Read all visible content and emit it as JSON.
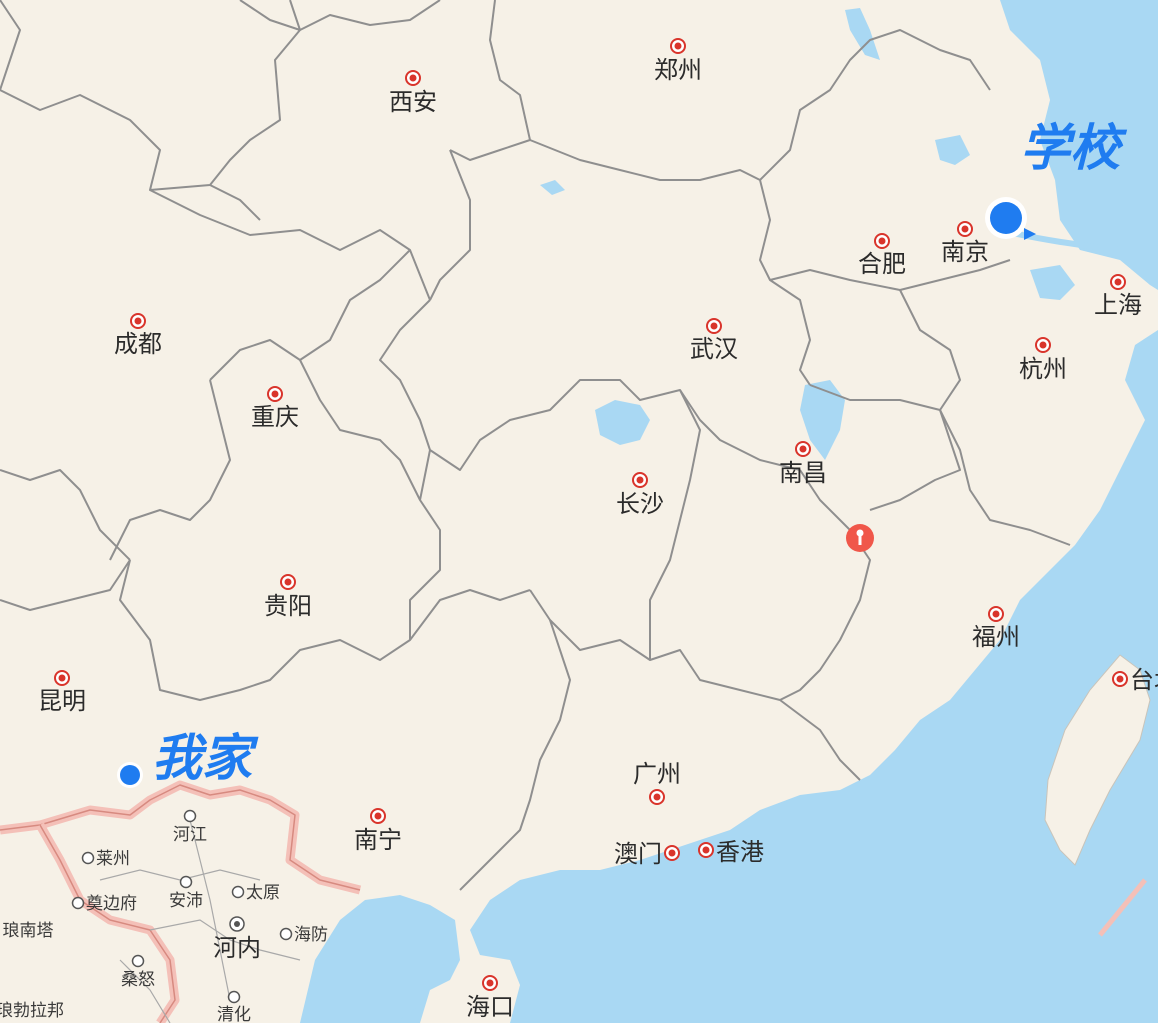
{
  "map": {
    "colors": {
      "land": "#f6f1e7",
      "water": "#a9d8f3",
      "border": "#8f8f8f",
      "national_border": "#f4c0b8",
      "city_dot": "#d9342b",
      "accent_blue": "#1f7cf0",
      "pin": "#f0574a"
    },
    "cities": [
      {
        "id": "xian",
        "name": "西安"
      },
      {
        "id": "zhengzhou",
        "name": "郑州"
      },
      {
        "id": "chengdu",
        "name": "成都"
      },
      {
        "id": "chongqing",
        "name": "重庆"
      },
      {
        "id": "wuhan",
        "name": "武汉"
      },
      {
        "id": "hefei",
        "name": "合肥"
      },
      {
        "id": "nanjing",
        "name": "南京"
      },
      {
        "id": "shanghai",
        "name": "上海"
      },
      {
        "id": "hangzhou",
        "name": "杭州"
      },
      {
        "id": "nanchang",
        "name": "南昌"
      },
      {
        "id": "changsha",
        "name": "长沙"
      },
      {
        "id": "guiyang",
        "name": "贵阳"
      },
      {
        "id": "kunming",
        "name": "昆明"
      },
      {
        "id": "fuzhou",
        "name": "福州"
      },
      {
        "id": "taibei",
        "name": "台北"
      },
      {
        "id": "nanning",
        "name": "南宁"
      },
      {
        "id": "guangzhou",
        "name": "广州"
      },
      {
        "id": "aomen",
        "name": "澳门"
      },
      {
        "id": "xianggang",
        "name": "香港"
      },
      {
        "id": "haikou",
        "name": "海口"
      }
    ],
    "vietnam_places": [
      {
        "id": "hejiang",
        "name": "河江"
      },
      {
        "id": "laizhou",
        "name": "莱州"
      },
      {
        "id": "taiyuan",
        "name": "太原"
      },
      {
        "id": "anpei",
        "name": "安沛"
      },
      {
        "id": "dianbianfu",
        "name": "奠边府"
      },
      {
        "id": "hefang",
        "name": "海防"
      },
      {
        "id": "langnanta",
        "name": "琅南塔"
      },
      {
        "id": "sangnu",
        "name": "桑怒"
      },
      {
        "id": "langbolabang",
        "name": "琅勃拉邦"
      },
      {
        "id": "qinghua",
        "name": "清化"
      }
    ],
    "hanoi": {
      "name": "河内"
    },
    "annotations": {
      "school": "学校",
      "home": "我家"
    }
  }
}
